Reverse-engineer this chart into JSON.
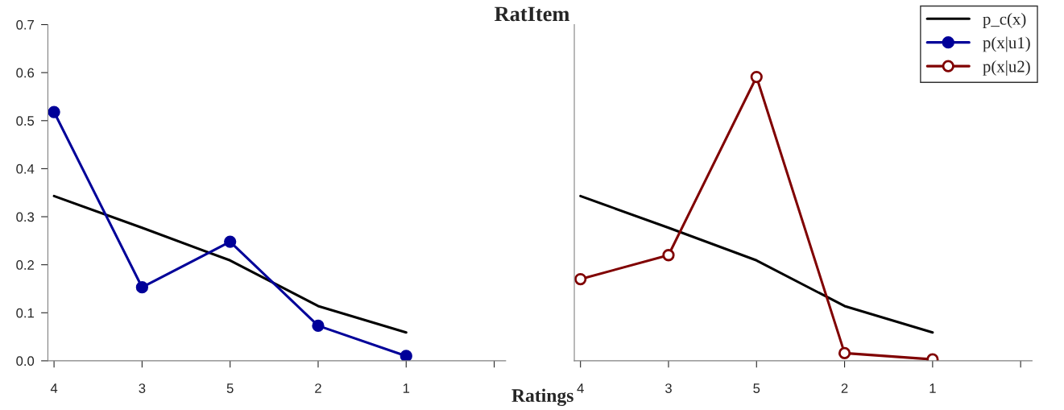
{
  "chart_data": [
    {
      "type": "line",
      "title": "RatItem",
      "xlabel": "Ratings",
      "categories": [
        "4",
        "3",
        "5",
        "2",
        "1",
        null
      ],
      "ylim": [
        0,
        0.7
      ],
      "legend": "top right",
      "yticks": [
        {
          "value": 0,
          "label": "0.0"
        },
        {
          "value": 0.1,
          "label": "0.1"
        },
        {
          "value": 0.2,
          "label": "0.2"
        },
        {
          "value": 0.3,
          "label": "0.3"
        },
        {
          "value": 0.4,
          "label": "0.4"
        },
        {
          "value": 0.5,
          "label": "0.5"
        },
        {
          "value": 0.6,
          "label": "0.6"
        },
        {
          "value": 0.7,
          "label": "0.7"
        }
      ],
      "grid": false,
      "series": [
        {
          "name": "p_c(x)",
          "color": "#000000",
          "marker": "none",
          "values": [
            0.343,
            0.277,
            0.209,
            0.114,
            0.059,
            null
          ]
        },
        {
          "name": "p(x|u1)",
          "color": "#000099",
          "marker": "circle",
          "values": [
            0.518,
            0.153,
            0.248,
            0.073,
            0.01,
            null
          ]
        }
      ]
    },
    {
      "type": "line",
      "categories": [
        "4",
        "3",
        "5",
        "2",
        "1",
        null
      ],
      "ylim": [
        0,
        0.7
      ],
      "tick_labels": "x",
      "grid": false,
      "legend": "top right",
      "series": [
        {
          "name": "p_c(x)",
          "color": "#000000",
          "marker": "none",
          "values": [
            0.343,
            0.277,
            0.209,
            0.114,
            0.059,
            null
          ]
        },
        {
          "name": "p(x|u2)",
          "color": "#800000",
          "marker": "circle",
          "values": [
            0.17,
            0.22,
            0.591,
            0.016,
            0.003,
            null
          ]
        }
      ]
    }
  ]
}
